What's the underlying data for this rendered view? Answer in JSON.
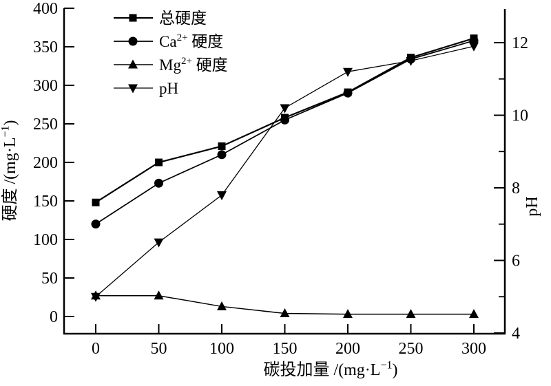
{
  "chart_data": {
    "type": "line",
    "title": "",
    "xlabel": "碳投加量 /(mg·L^{−1})",
    "ylabel_left": "硬度 /(mg·L^{−1})",
    "ylabel_right": "pH",
    "background": "#ffffff",
    "line_color": "#000000",
    "grid": false,
    "legend_position": "top-left",
    "x_range": [
      0,
      300
    ],
    "x_ticks": [
      0,
      50,
      100,
      150,
      200,
      250,
      300
    ],
    "left_axis_range": [
      0,
      400
    ],
    "left_axis_ticks": [
      0,
      50,
      100,
      150,
      200,
      250,
      300,
      350,
      400
    ],
    "right_axis_range": [
      4,
      12
    ],
    "right_axis_major_ticks": [
      4,
      6,
      8,
      10,
      12
    ],
    "right_axis_minor_ticks": [
      5,
      7,
      9,
      11
    ],
    "x": [
      0,
      50,
      100,
      150,
      200,
      250,
      300
    ],
    "series": [
      {
        "key": "total-hardness",
        "name": "总硬度",
        "axis": "left",
        "marker": "square",
        "values": [
          148,
          200,
          221,
          258,
          291,
          336,
          361
        ]
      },
      {
        "key": "ca-hardness",
        "name": "Ca^{2+} 硬度",
        "axis": "left",
        "marker": "circle",
        "values": [
          120,
          173,
          210,
          255,
          290,
          334,
          358
        ]
      },
      {
        "key": "mg-hardness",
        "name": "Mg^{2+} 硬度",
        "axis": "left",
        "marker": "triangle-up",
        "values": [
          27,
          27,
          13,
          4,
          3,
          3,
          3
        ]
      },
      {
        "key": "ph",
        "name": "pH",
        "axis": "right",
        "marker": "triangle-down",
        "values": [
          5.0,
          6.5,
          7.8,
          10.2,
          11.2,
          11.5,
          11.9
        ]
      }
    ]
  }
}
